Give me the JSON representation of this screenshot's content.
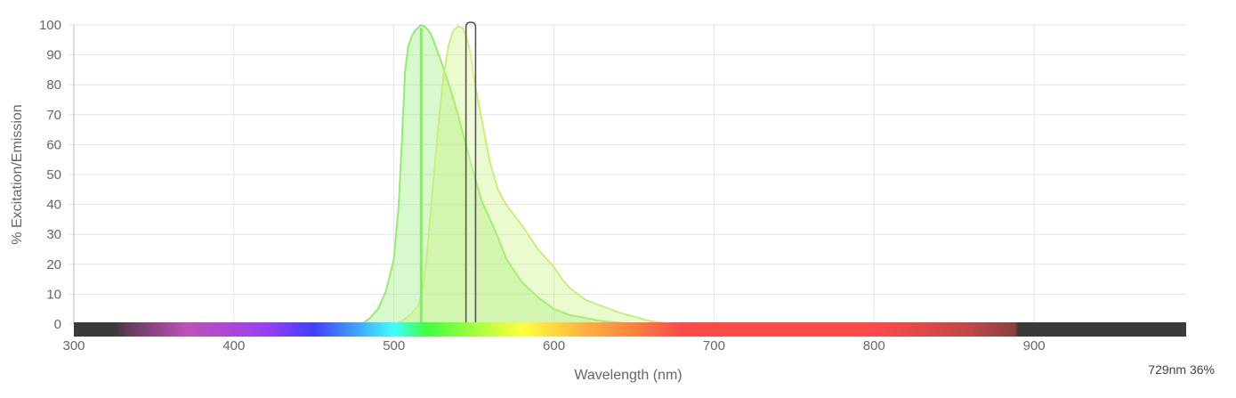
{
  "chart_data": {
    "type": "area",
    "xlabel": "Wavelength (nm)",
    "ylabel": "% Excitation/Emission",
    "xlim": [
      300,
      995
    ],
    "ylim": [
      0,
      100
    ],
    "x_ticks": [
      300,
      400,
      500,
      600,
      700,
      800,
      900
    ],
    "y_ticks": [
      0,
      10,
      20,
      30,
      40,
      50,
      60,
      70,
      80,
      90,
      100
    ],
    "grid": true,
    "legend": "none",
    "series": [
      {
        "role": "excitation",
        "color": "#90ee70",
        "fill": "rgba(144,238,112,0.35)",
        "x": [
          480,
          485,
          490,
          495,
          500,
          503,
          505,
          507,
          509,
          511,
          513,
          515,
          517,
          519,
          521,
          523,
          526,
          530,
          535,
          540,
          545,
          550,
          555,
          560,
          565,
          570,
          580,
          590,
          600,
          610,
          620,
          630,
          640,
          650
        ],
        "y": [
          0,
          2,
          5,
          11,
          22,
          40,
          62,
          85,
          93,
          96,
          98,
          99,
          100,
          99.5,
          98.5,
          97,
          93,
          87,
          79,
          70,
          60,
          50,
          41,
          35,
          29,
          22,
          14,
          9,
          5,
          3,
          2,
          1,
          0.5,
          0
        ]
      },
      {
        "role": "emission",
        "color": "#c8f078",
        "fill": "rgba(200,240,120,0.35)",
        "x": [
          500,
          505,
          510,
          515,
          518,
          520,
          522,
          525,
          528,
          531,
          534,
          537,
          540,
          543,
          546,
          548,
          550,
          555,
          560,
          565,
          570,
          580,
          590,
          600,
          605,
          610,
          615,
          620,
          630,
          640,
          650,
          660,
          670,
          680
        ],
        "y": [
          0,
          1,
          3,
          6,
          12,
          20,
          32,
          50,
          68,
          83,
          93,
          98,
          99.5,
          99,
          95,
          90,
          82,
          68,
          54,
          45,
          40,
          33,
          25,
          19,
          15,
          12,
          10,
          8,
          6,
          4,
          2.5,
          1,
          0.3,
          0
        ]
      }
    ],
    "markers": [
      {
        "type": "line",
        "x": 517,
        "color": "#8ce86c"
      },
      {
        "type": "band",
        "x_start": 545,
        "x_end": 551,
        "color": "#555555"
      }
    ],
    "spectrum_bar": {
      "x_start": 300,
      "x_end": 995,
      "stops": [
        {
          "nm": 300,
          "color": "#3a3a3a"
        },
        {
          "nm": 326,
          "color": "#3a3a3a"
        },
        {
          "nm": 330,
          "color": "#5a3a50"
        },
        {
          "nm": 370,
          "color": "#c050b8"
        },
        {
          "nm": 420,
          "color": "#9a40f0"
        },
        {
          "nm": 450,
          "color": "#4040ff"
        },
        {
          "nm": 480,
          "color": "#40b0ff"
        },
        {
          "nm": 500,
          "color": "#40ffff"
        },
        {
          "nm": 520,
          "color": "#40ff40"
        },
        {
          "nm": 560,
          "color": "#c0ff40"
        },
        {
          "nm": 580,
          "color": "#ffff40"
        },
        {
          "nm": 620,
          "color": "#ffb040"
        },
        {
          "nm": 650,
          "color": "#ff8040"
        },
        {
          "nm": 680,
          "color": "#ff4a4a"
        },
        {
          "nm": 800,
          "color": "#ff4a4a"
        },
        {
          "nm": 860,
          "color": "#c04848"
        },
        {
          "nm": 888,
          "color": "#8a4040"
        },
        {
          "nm": 890,
          "color": "#3a3a3a"
        },
        {
          "nm": 995,
          "color": "#3a3a3a"
        }
      ]
    }
  },
  "readout": "729nm 36%"
}
